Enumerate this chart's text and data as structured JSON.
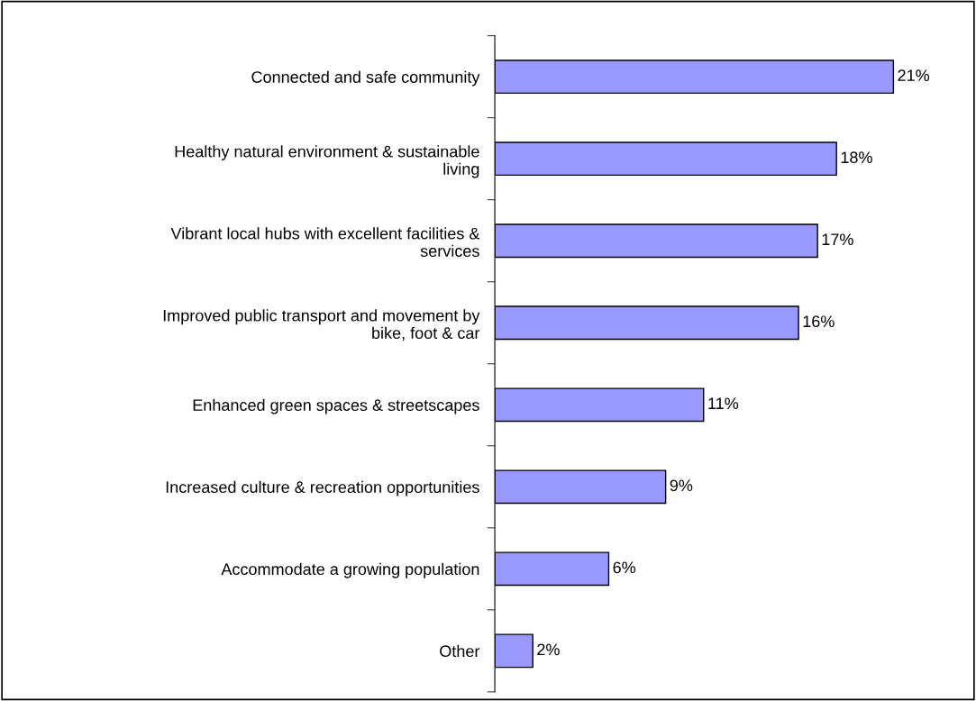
{
  "chart_data": {
    "type": "bar",
    "orientation": "horizontal",
    "categories": [
      "Connected and safe community",
      "Healthy natural environment & sustainable\nliving",
      "Vibrant local hubs with excellent facilities &\nservices",
      "Improved public transport and movement by\nbike, foot & car",
      "Enhanced green spaces & streetscapes",
      "Increased culture & recreation opportunities",
      "Accommodate a growing population",
      "Other"
    ],
    "values": [
      21,
      18,
      17,
      16,
      11,
      9,
      6,
      2
    ],
    "value_labels": [
      "21%",
      "18%",
      "17%",
      "16%",
      "11%",
      "9%",
      "6%",
      "2%"
    ],
    "color": "#9999ff",
    "tick_labels": "y",
    "grid": false
  }
}
